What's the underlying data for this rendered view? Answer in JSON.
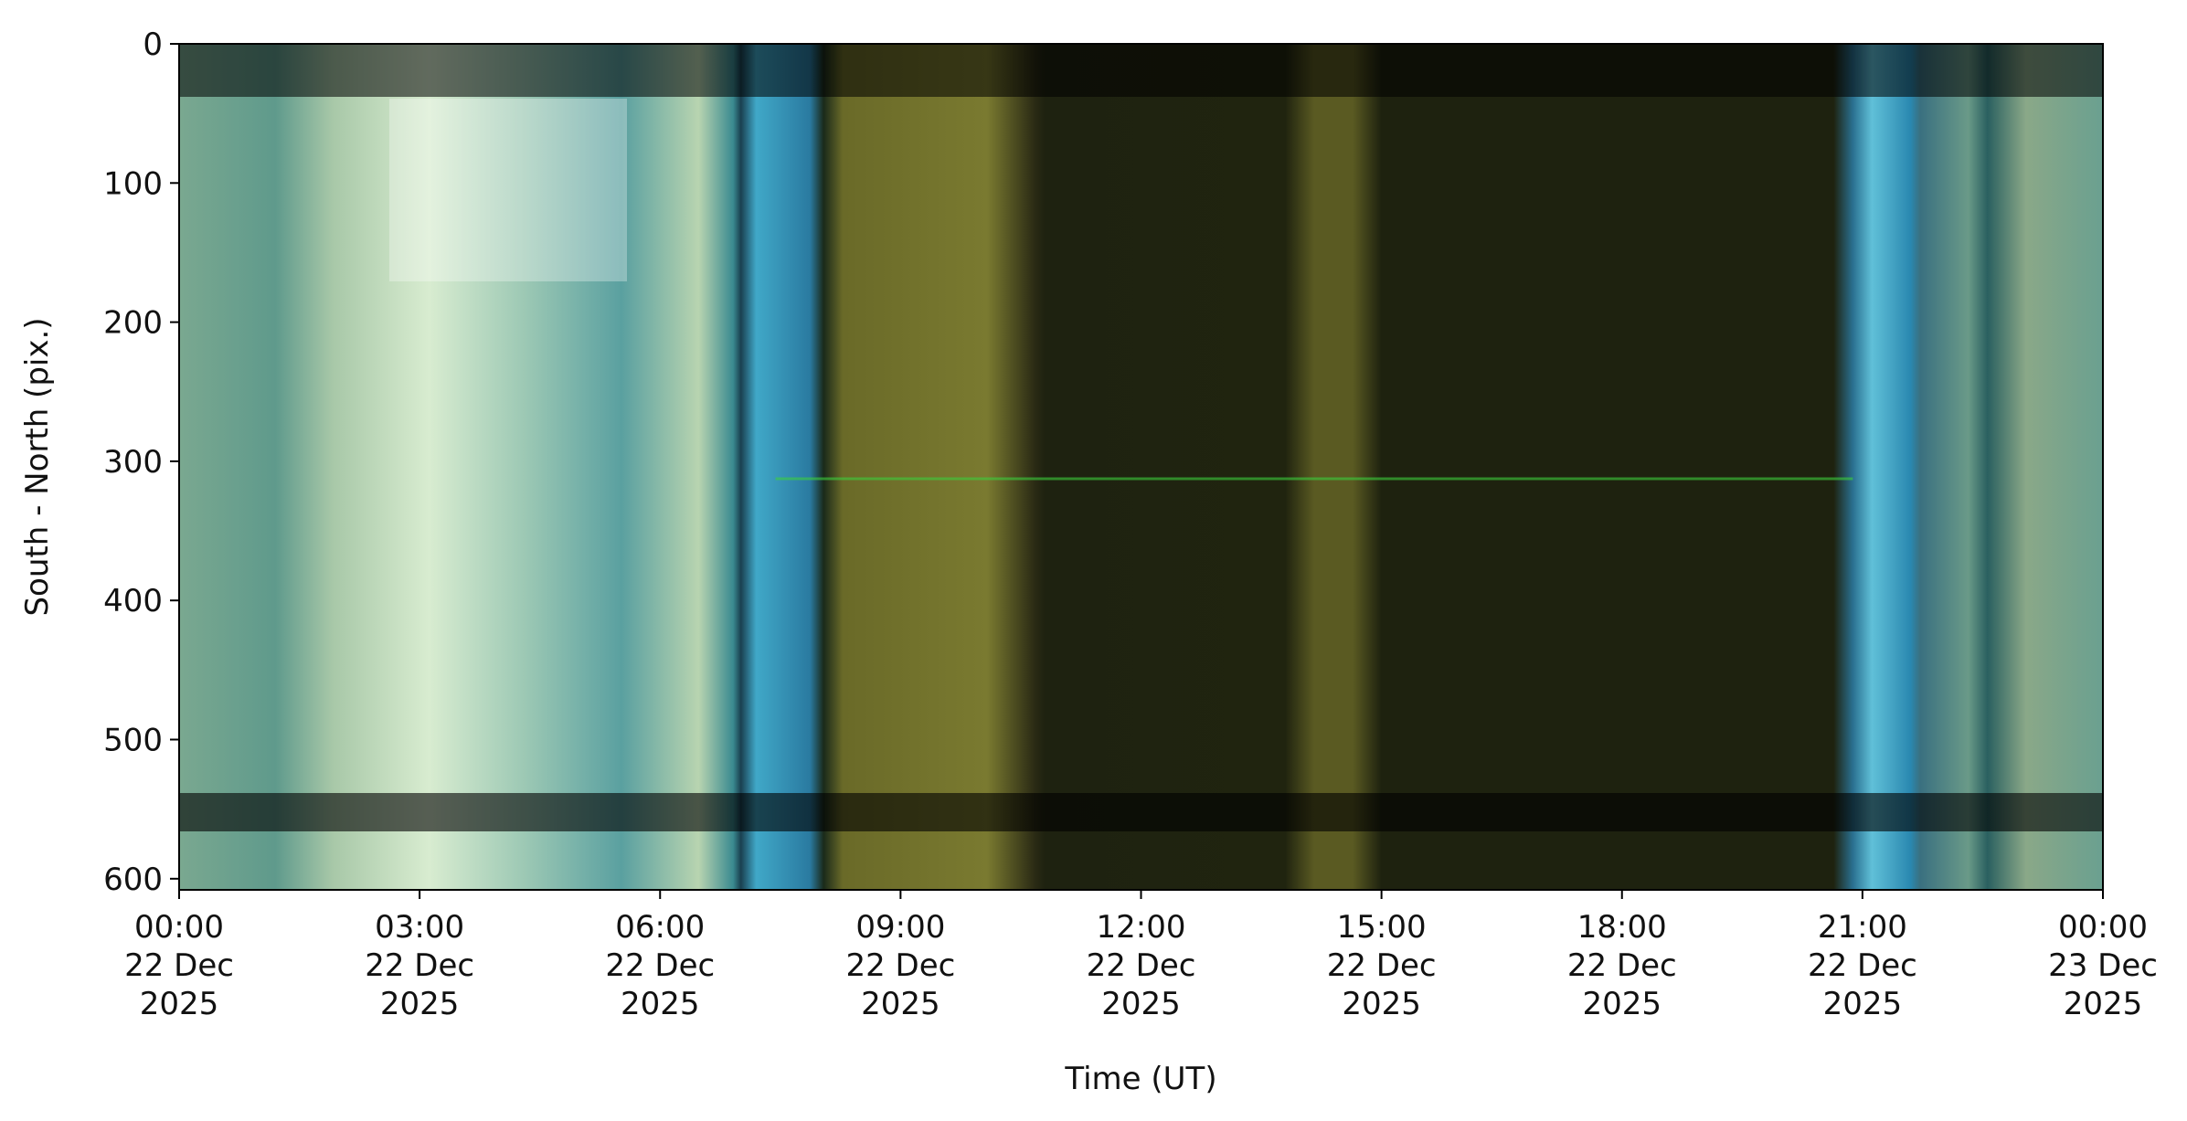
{
  "chart_data": {
    "type": "image",
    "xlabel": "Time (UT)",
    "ylabel": "South - North (pix.)",
    "xlim": [
      "2025-12-22T00:00",
      "2025-12-23T00:00"
    ],
    "xticks": [
      {
        "value": "2025-12-22T00:00",
        "label": [
          "00:00",
          "22 Dec",
          "2025"
        ]
      },
      {
        "value": "2025-12-22T03:00",
        "label": [
          "03:00",
          "22 Dec",
          "2025"
        ]
      },
      {
        "value": "2025-12-22T06:00",
        "label": [
          "06:00",
          "22 Dec",
          "2025"
        ]
      },
      {
        "value": "2025-12-22T09:00",
        "label": [
          "09:00",
          "22 Dec",
          "2025"
        ]
      },
      {
        "value": "2025-12-22T12:00",
        "label": [
          "12:00",
          "22 Dec",
          "2025"
        ]
      },
      {
        "value": "2025-12-22T15:00",
        "label": [
          "15:00",
          "22 Dec",
          "2025"
        ]
      },
      {
        "value": "2025-12-22T18:00",
        "label": [
          "18:00",
          "22 Dec",
          "2025"
        ]
      },
      {
        "value": "2025-12-22T21:00",
        "label": [
          "21:00",
          "22 Dec",
          "2025"
        ]
      },
      {
        "value": "2025-12-23T00:00",
        "label": [
          "00:00",
          "23 Dec",
          "2025"
        ]
      }
    ],
    "ylim": [
      608,
      0
    ],
    "yticks": [
      0,
      100,
      200,
      300,
      400,
      500,
      600
    ]
  }
}
